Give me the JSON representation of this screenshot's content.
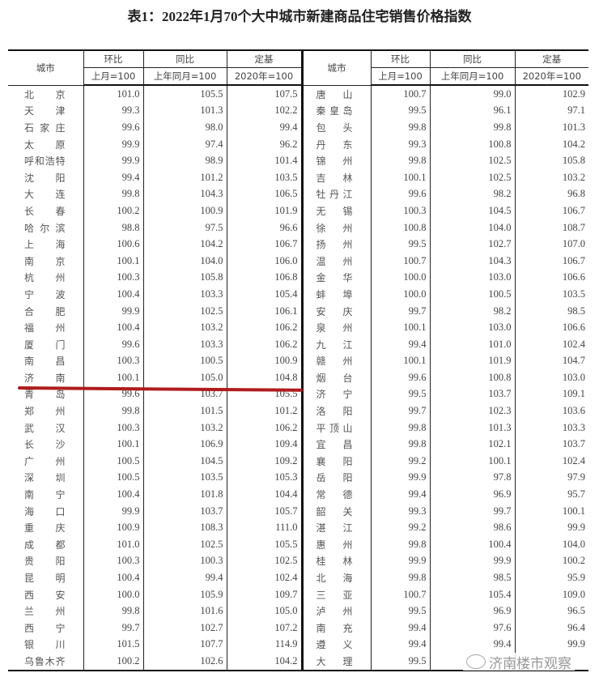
{
  "title": "表1：2022年1月70个大中城市新建商品住宅销售价格指数",
  "headers": {
    "city": "城市",
    "mom": "环比",
    "yoy": "同比",
    "base": "定基",
    "mom_sub": "上月=100",
    "yoy_sub": "上年同月=100",
    "base_sub": "2020年=100"
  },
  "rows": [
    {
      "l": [
        "北京",
        "101.0",
        "105.5",
        "107.5"
      ],
      "r": [
        "唐山",
        "100.7",
        "99.0",
        "102.9"
      ]
    },
    {
      "l": [
        "天津",
        "99.3",
        "101.3",
        "102.2"
      ],
      "r": [
        "秦皇岛",
        "99.5",
        "96.1",
        "97.1"
      ]
    },
    {
      "l": [
        "石家庄",
        "99.6",
        "98.0",
        "99.4"
      ],
      "r": [
        "包头",
        "99.8",
        "99.8",
        "101.3"
      ]
    },
    {
      "l": [
        "太原",
        "99.9",
        "97.4",
        "96.2"
      ],
      "r": [
        "丹东",
        "99.3",
        "100.8",
        "104.2"
      ]
    },
    {
      "l": [
        "呼和浩特",
        "99.9",
        "98.9",
        "101.4"
      ],
      "r": [
        "锦州",
        "99.8",
        "102.5",
        "105.8"
      ]
    },
    {
      "l": [
        "沈阳",
        "99.4",
        "101.2",
        "103.5"
      ],
      "r": [
        "吉林",
        "100.1",
        "102.5",
        "103.2"
      ]
    },
    {
      "l": [
        "大连",
        "99.8",
        "104.3",
        "106.5"
      ],
      "r": [
        "牡丹江",
        "99.6",
        "98.2",
        "96.8"
      ]
    },
    {
      "l": [
        "长春",
        "100.2",
        "100.9",
        "101.9"
      ],
      "r": [
        "无锡",
        "100.3",
        "104.5",
        "106.7"
      ]
    },
    {
      "l": [
        "哈尔滨",
        "98.8",
        "97.5",
        "96.6"
      ],
      "r": [
        "徐州",
        "100.8",
        "104.0",
        "108.7"
      ]
    },
    {
      "l": [
        "上海",
        "100.6",
        "104.2",
        "106.7"
      ],
      "r": [
        "扬州",
        "99.5",
        "102.7",
        "107.0"
      ]
    },
    {
      "l": [
        "南京",
        "100.1",
        "104.0",
        "106.0"
      ],
      "r": [
        "温州",
        "100.7",
        "104.3",
        "106.7"
      ]
    },
    {
      "l": [
        "杭州",
        "100.3",
        "105.8",
        "106.8"
      ],
      "r": [
        "金华",
        "100.0",
        "103.0",
        "106.6"
      ]
    },
    {
      "l": [
        "宁波",
        "100.4",
        "103.3",
        "105.4"
      ],
      "r": [
        "蚌埠",
        "100.0",
        "100.5",
        "103.5"
      ]
    },
    {
      "l": [
        "合肥",
        "99.9",
        "102.5",
        "106.1"
      ],
      "r": [
        "安庆",
        "99.7",
        "98.2",
        "98.5"
      ]
    },
    {
      "l": [
        "福州",
        "100.4",
        "103.2",
        "106.2"
      ],
      "r": [
        "泉州",
        "100.1",
        "103.0",
        "106.6"
      ]
    },
    {
      "l": [
        "厦门",
        "99.6",
        "103.3",
        "106.2"
      ],
      "r": [
        "九江",
        "99.4",
        "101.0",
        "102.4"
      ]
    },
    {
      "l": [
        "南昌",
        "100.3",
        "100.5",
        "100.9"
      ],
      "r": [
        "赣州",
        "100.1",
        "101.9",
        "104.7"
      ]
    },
    {
      "l": [
        "济南",
        "100.1",
        "105.0",
        "104.8"
      ],
      "r": [
        "烟台",
        "99.6",
        "100.8",
        "103.0"
      ]
    },
    {
      "l": [
        "青岛",
        "99.6",
        "103.7",
        "105.5"
      ],
      "r": [
        "济宁",
        "99.5",
        "103.7",
        "109.1"
      ]
    },
    {
      "l": [
        "郑州",
        "99.8",
        "101.5",
        "101.2"
      ],
      "r": [
        "洛阳",
        "99.7",
        "102.3",
        "103.6"
      ]
    },
    {
      "l": [
        "武汉",
        "100.3",
        "103.2",
        "106.2"
      ],
      "r": [
        "平顶山",
        "99.8",
        "101.3",
        "103.3"
      ]
    },
    {
      "l": [
        "长沙",
        "100.1",
        "106.9",
        "109.4"
      ],
      "r": [
        "宜昌",
        "99.8",
        "102.1",
        "103.7"
      ]
    },
    {
      "l": [
        "广州",
        "100.5",
        "104.5",
        "109.2"
      ],
      "r": [
        "襄阳",
        "99.2",
        "100.1",
        "102.4"
      ]
    },
    {
      "l": [
        "深圳",
        "100.5",
        "103.5",
        "105.3"
      ],
      "r": [
        "岳阳",
        "99.9",
        "97.8",
        "97.9"
      ]
    },
    {
      "l": [
        "南宁",
        "100.4",
        "101.8",
        "104.4"
      ],
      "r": [
        "常德",
        "99.4",
        "96.9",
        "95.7"
      ]
    },
    {
      "l": [
        "海口",
        "99.9",
        "103.7",
        "105.7"
      ],
      "r": [
        "韶关",
        "99.3",
        "99.7",
        "100.1"
      ]
    },
    {
      "l": [
        "重庆",
        "100.9",
        "108.3",
        "111.0"
      ],
      "r": [
        "湛江",
        "99.2",
        "98.6",
        "99.9"
      ]
    },
    {
      "l": [
        "成都",
        "101.0",
        "102.5",
        "105.5"
      ],
      "r": [
        "惠州",
        "99.8",
        "100.4",
        "104.0"
      ]
    },
    {
      "l": [
        "贵阳",
        "100.3",
        "100.3",
        "102.5"
      ],
      "r": [
        "桂林",
        "99.9",
        "99.9",
        "100.2"
      ]
    },
    {
      "l": [
        "昆明",
        "100.4",
        "99.4",
        "102.4"
      ],
      "r": [
        "北海",
        "99.8",
        "98.5",
        "95.9"
      ]
    },
    {
      "l": [
        "西安",
        "100.0",
        "105.9",
        "109.7"
      ],
      "r": [
        "三亚",
        "100.7",
        "105.4",
        "109.0"
      ]
    },
    {
      "l": [
        "兰州",
        "99.8",
        "101.6",
        "105.0"
      ],
      "r": [
        "泸州",
        "99.5",
        "96.9",
        "96.5"
      ]
    },
    {
      "l": [
        "西宁",
        "99.7",
        "102.7",
        "107.2"
      ],
      "r": [
        "南充",
        "99.4",
        "97.6",
        "96.4"
      ]
    },
    {
      "l": [
        "银川",
        "101.5",
        "107.7",
        "114.9"
      ],
      "r": [
        "遵义",
        "99.4",
        "99.4",
        "99.9"
      ]
    },
    {
      "l": [
        "乌鲁木齐",
        "100.2",
        "102.6",
        "104.2"
      ],
      "r": [
        "大理",
        "99.5",
        "",
        ""
      ]
    }
  ],
  "highlight_row": "济南",
  "highlight_color": "#b01c1c",
  "watermark": "济南楼市观察",
  "watermark_icon": "wechat-icon"
}
